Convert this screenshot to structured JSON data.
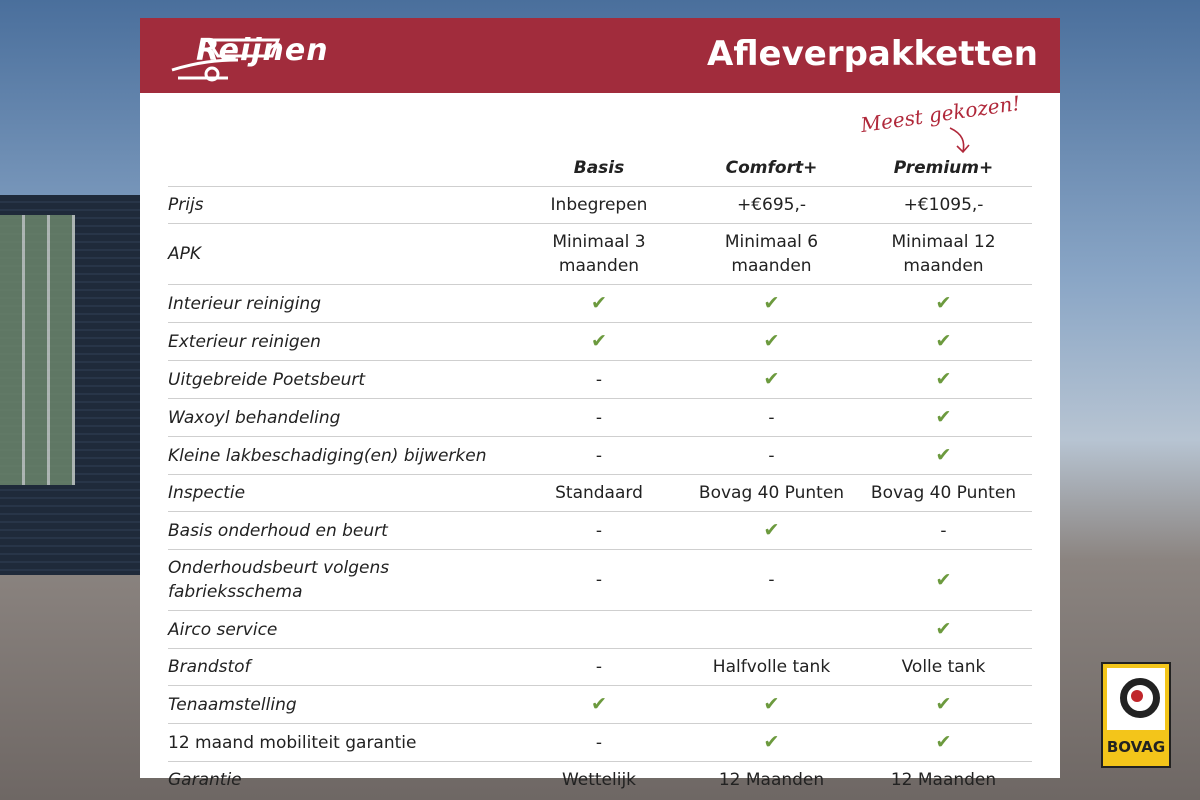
{
  "header": {
    "logo": "Reijnen",
    "title": "Afleverpakketten"
  },
  "annotation": "Meest gekozen!",
  "table": {
    "columns": [
      "Basis",
      "Comfort+",
      "Premium+"
    ],
    "rows": [
      {
        "label": "Prijs",
        "values": [
          "Inbegrepen",
          "+€695,-",
          "+€1095,-"
        ]
      },
      {
        "label": "APK",
        "values": [
          [
            "Minimaal 3",
            "maanden"
          ],
          [
            "Minimaal 6",
            "maanden"
          ],
          [
            "Minimaal 12",
            "maanden"
          ]
        ]
      },
      {
        "label": "Interieur reiniging",
        "values": [
          "✔",
          "✔",
          "✔"
        ]
      },
      {
        "label": "Exterieur reinigen",
        "values": [
          "✔",
          "✔",
          "✔"
        ]
      },
      {
        "label": "Uitgebreide Poetsbeurt",
        "values": [
          "-",
          "✔",
          "✔"
        ]
      },
      {
        "label": "Waxoyl behandeling",
        "values": [
          "-",
          "-",
          "✔"
        ]
      },
      {
        "label": "Kleine lakbeschadiging(en) bijwerken",
        "values": [
          "-",
          "-",
          "✔"
        ]
      },
      {
        "label": "Inspectie",
        "values": [
          "Standaard",
          "Bovag 40 Punten",
          "Bovag 40 Punten"
        ]
      },
      {
        "label": "Basis onderhoud en beurt",
        "values": [
          "-",
          "✔",
          "-"
        ]
      },
      {
        "label": [
          "Onderhoudsbeurt volgens",
          "fabrieksschema"
        ],
        "values": [
          "-",
          "-",
          "✔"
        ]
      },
      {
        "label": "Airco service",
        "values": [
          null,
          null,
          "✔"
        ]
      },
      {
        "label": "Brandstof",
        "values": [
          "-",
          "Halfvolle tank",
          "Volle tank"
        ]
      },
      {
        "label": "Tenaamstelling",
        "values": [
          "✔",
          "✔",
          "✔"
        ]
      },
      {
        "label": "12 maand mobiliteit garantie",
        "values": [
          "-",
          "✔",
          "✔"
        ],
        "upright": true
      },
      {
        "label": "Garantie",
        "values": [
          "Wettelijk",
          "12 Maanden",
          "12 Maanden"
        ]
      }
    ]
  },
  "badge": "BOVAG"
}
